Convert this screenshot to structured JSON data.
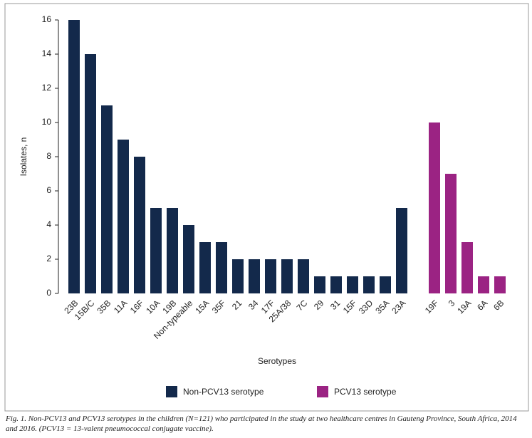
{
  "chart_data": {
    "type": "bar",
    "x_label": "Serotypes",
    "y_label": "Isolates, n",
    "caption": "Fig. 1. Non-PCV13 and PCV13 serotypes in the children (N=121) who participated in the study at two healthcare centres in Gauteng Province, South Africa, 2014 and 2016. (PCV13 = 13-valent pneumococcal conjugate vaccine).",
    "categories": [
      "23B",
      "15B/C",
      "35B",
      "11A",
      "16F",
      "10A",
      "19B",
      "Non-typeable",
      "15A",
      "35F",
      "21",
      "34",
      "17F",
      "25A/38",
      "7C",
      "29",
      "31",
      "15F",
      "33D",
      "35A",
      "23A",
      null,
      "19F",
      "3",
      "19A",
      "6A",
      "6B"
    ],
    "series": [
      {
        "name": "Non-PCV13 serotype",
        "color": "#13294b",
        "values": [
          16,
          14,
          11,
          9,
          8,
          5,
          5,
          4,
          3,
          3,
          2,
          2,
          2,
          2,
          2,
          1,
          1,
          1,
          1,
          1,
          5,
          null,
          null,
          null,
          null,
          null,
          null
        ]
      },
      {
        "name": "PCV13 serotype",
        "color": "#9b2383",
        "values": [
          null,
          null,
          null,
          null,
          null,
          null,
          null,
          null,
          null,
          null,
          null,
          null,
          null,
          null,
          null,
          null,
          null,
          null,
          null,
          null,
          null,
          null,
          10,
          7,
          3,
          1,
          1
        ]
      }
    ],
    "ylim": [
      0,
      16
    ],
    "yticks": [
      0,
      2,
      4,
      6,
      8,
      10,
      12,
      14,
      16
    ],
    "grid": false,
    "legend": "bottom"
  }
}
